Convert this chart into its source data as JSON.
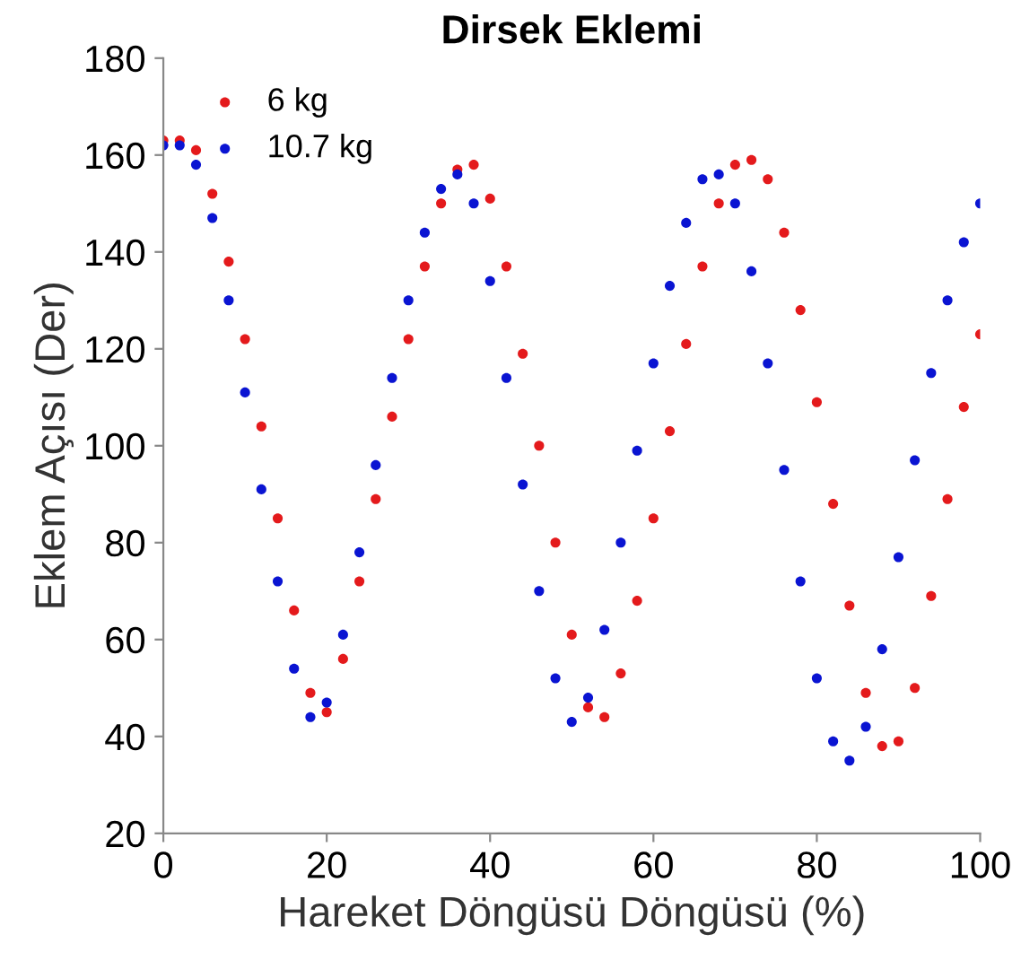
{
  "chart_data": {
    "type": "scatter",
    "title": "Dirsek Eklemi",
    "xlabel": "Hareket Döngüsü Döngüsü (%)",
    "ylabel": "Eklem Açısı (Der)",
    "x": [
      0,
      2,
      4,
      6,
      8,
      10,
      12,
      14,
      16,
      18,
      20,
      22,
      24,
      26,
      28,
      30,
      32,
      34,
      36,
      38,
      40,
      42,
      44,
      46,
      48,
      50,
      52,
      54,
      56,
      58,
      60,
      62,
      64,
      66,
      68,
      70,
      72,
      74,
      76,
      78,
      80,
      82,
      84,
      86,
      88,
      90,
      92,
      94,
      96,
      98,
      100
    ],
    "series": [
      {
        "name": "6 kg",
        "color": "#e41a1c",
        "values": [
          163,
          163,
          161,
          152,
          138,
          122,
          104,
          85,
          66,
          49,
          45,
          56,
          72,
          89,
          106,
          122,
          137,
          150,
          157,
          158,
          151,
          137,
          119,
          100,
          80,
          61,
          46,
          44,
          53,
          68,
          85,
          103,
          121,
          137,
          150,
          158,
          159,
          155,
          144,
          128,
          109,
          88,
          67,
          49,
          38,
          39,
          50,
          69,
          89,
          108,
          123
        ]
      },
      {
        "name": "10.7 kg",
        "color": "#0a14d2",
        "values": [
          162,
          162,
          158,
          147,
          130,
          111,
          91,
          72,
          54,
          44,
          47,
          61,
          78,
          96,
          114,
          130,
          144,
          153,
          156,
          150,
          134,
          114,
          92,
          70,
          52,
          43,
          48,
          62,
          80,
          99,
          117,
          133,
          146,
          155,
          156,
          150,
          136,
          117,
          95,
          72,
          52,
          39,
          35,
          42,
          58,
          77,
          97,
          115,
          130,
          142,
          150
        ]
      }
    ],
    "xlim": [
      0,
      100
    ],
    "xticks": [
      0,
      20,
      40,
      60,
      80,
      100
    ],
    "ylim": [
      20,
      180
    ],
    "yticks": [
      20,
      40,
      60,
      80,
      100,
      120,
      140,
      160,
      180
    ],
    "grid": false,
    "legend": "top left",
    "marker": "circle"
  }
}
